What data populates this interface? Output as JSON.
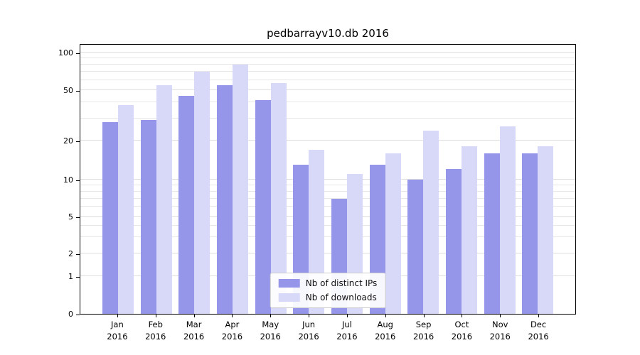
{
  "title": "pedbarrayv10.db 2016",
  "chart_data": {
    "type": "bar",
    "title": "pedbarrayv10.db 2016",
    "scale": "symlog",
    "categories": [
      "Jan 2016",
      "Feb 2016",
      "Mar 2016",
      "Apr 2016",
      "May 2016",
      "Jun 2016",
      "Jul 2016",
      "Aug 2016",
      "Sep 2016",
      "Oct 2016",
      "Nov 2016",
      "Dec 2016"
    ],
    "series": [
      {
        "name": "Nb of distinct IPs",
        "color": "#9595ea",
        "values": [
          28,
          29,
          45,
          55,
          42,
          13,
          7,
          13,
          10,
          12,
          16,
          16
        ]
      },
      {
        "name": "Nb of downloads",
        "color": "#d8d8f8",
        "values": [
          38,
          55,
          70,
          80,
          57,
          17,
          11,
          16,
          24,
          18,
          26,
          18
        ]
      }
    ],
    "yticks": [
      0,
      1,
      2,
      5,
      10,
      20,
      50,
      100
    ],
    "gridlines_minor": [
      3,
      4,
      6,
      7,
      8,
      9,
      30,
      40,
      60,
      70,
      80,
      90
    ],
    "ylim": [
      0,
      110
    ],
    "xlabel": "",
    "ylabel": "",
    "legend_position": "lower center",
    "grid": true
  },
  "legend": {
    "items": [
      {
        "label": "Nb of distinct IPs"
      },
      {
        "label": "Nb of downloads"
      }
    ]
  }
}
